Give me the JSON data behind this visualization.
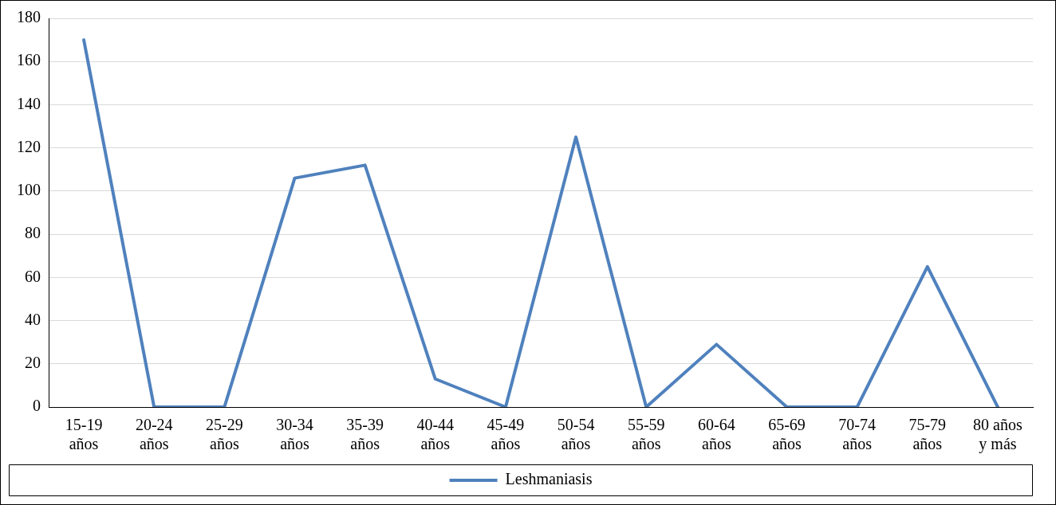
{
  "chart_data": {
    "type": "line",
    "categories": [
      "15-19 años",
      "20-24 años",
      "25-29 años",
      "30-34 años",
      "35-39 años",
      "40-44 años",
      "45-49 años",
      "50-54 años",
      "55-59 años",
      "60-64 años",
      "65-69 años",
      "70-74 años",
      "75-79 años",
      "80 años y más"
    ],
    "series": [
      {
        "name": "Leshmaniasis",
        "color": "#4f81bd",
        "values": [
          170,
          0,
          0,
          106,
          112,
          13,
          0,
          125,
          0,
          29,
          0,
          0,
          65,
          0
        ]
      }
    ],
    "ylim": [
      0,
      180
    ],
    "yticks": [
      0,
      20,
      40,
      60,
      80,
      100,
      120,
      140,
      160,
      180
    ],
    "grid": "y",
    "legend": "bottom",
    "marker": "none",
    "line_style": "solid"
  }
}
